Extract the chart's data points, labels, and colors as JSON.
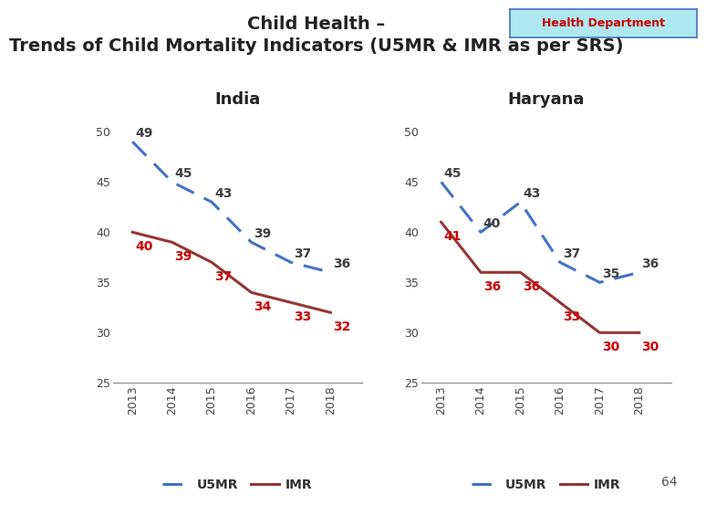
{
  "title_line1": "Child Health –",
  "title_line2": "Trends of Child Mortality Indicators (U5MR & IMR as per SRS)",
  "badge_text": "Health Department",
  "badge_bg": "#aee8f0",
  "badge_fg": "#cc0000",
  "badge_border": "#4472c4",
  "years": [
    2013,
    2014,
    2015,
    2016,
    2017,
    2018
  ],
  "india_u5mr": [
    49,
    45,
    43,
    39,
    37,
    36
  ],
  "india_imr": [
    40,
    39,
    37,
    34,
    33,
    32
  ],
  "haryana_u5mr": [
    45,
    40,
    43,
    37,
    35,
    36
  ],
  "haryana_imr": [
    41,
    36,
    36,
    33,
    30,
    30
  ],
  "u5mr_color": "#4472c4",
  "imr_color": "#943634",
  "label_color_u5mr": "#404040",
  "label_color_imr": "#cc0000",
  "ylim": [
    25,
    52
  ],
  "yticks": [
    25,
    30,
    35,
    40,
    45,
    50
  ],
  "bg_color": "#ffffff",
  "title_fontsize": 14,
  "subtitle_fontsize": 14,
  "panel_title_fontsize": 13,
  "axis_tick_fontsize": 9,
  "data_label_fontsize": 10,
  "legend_fontsize": 10,
  "page_number": "64"
}
